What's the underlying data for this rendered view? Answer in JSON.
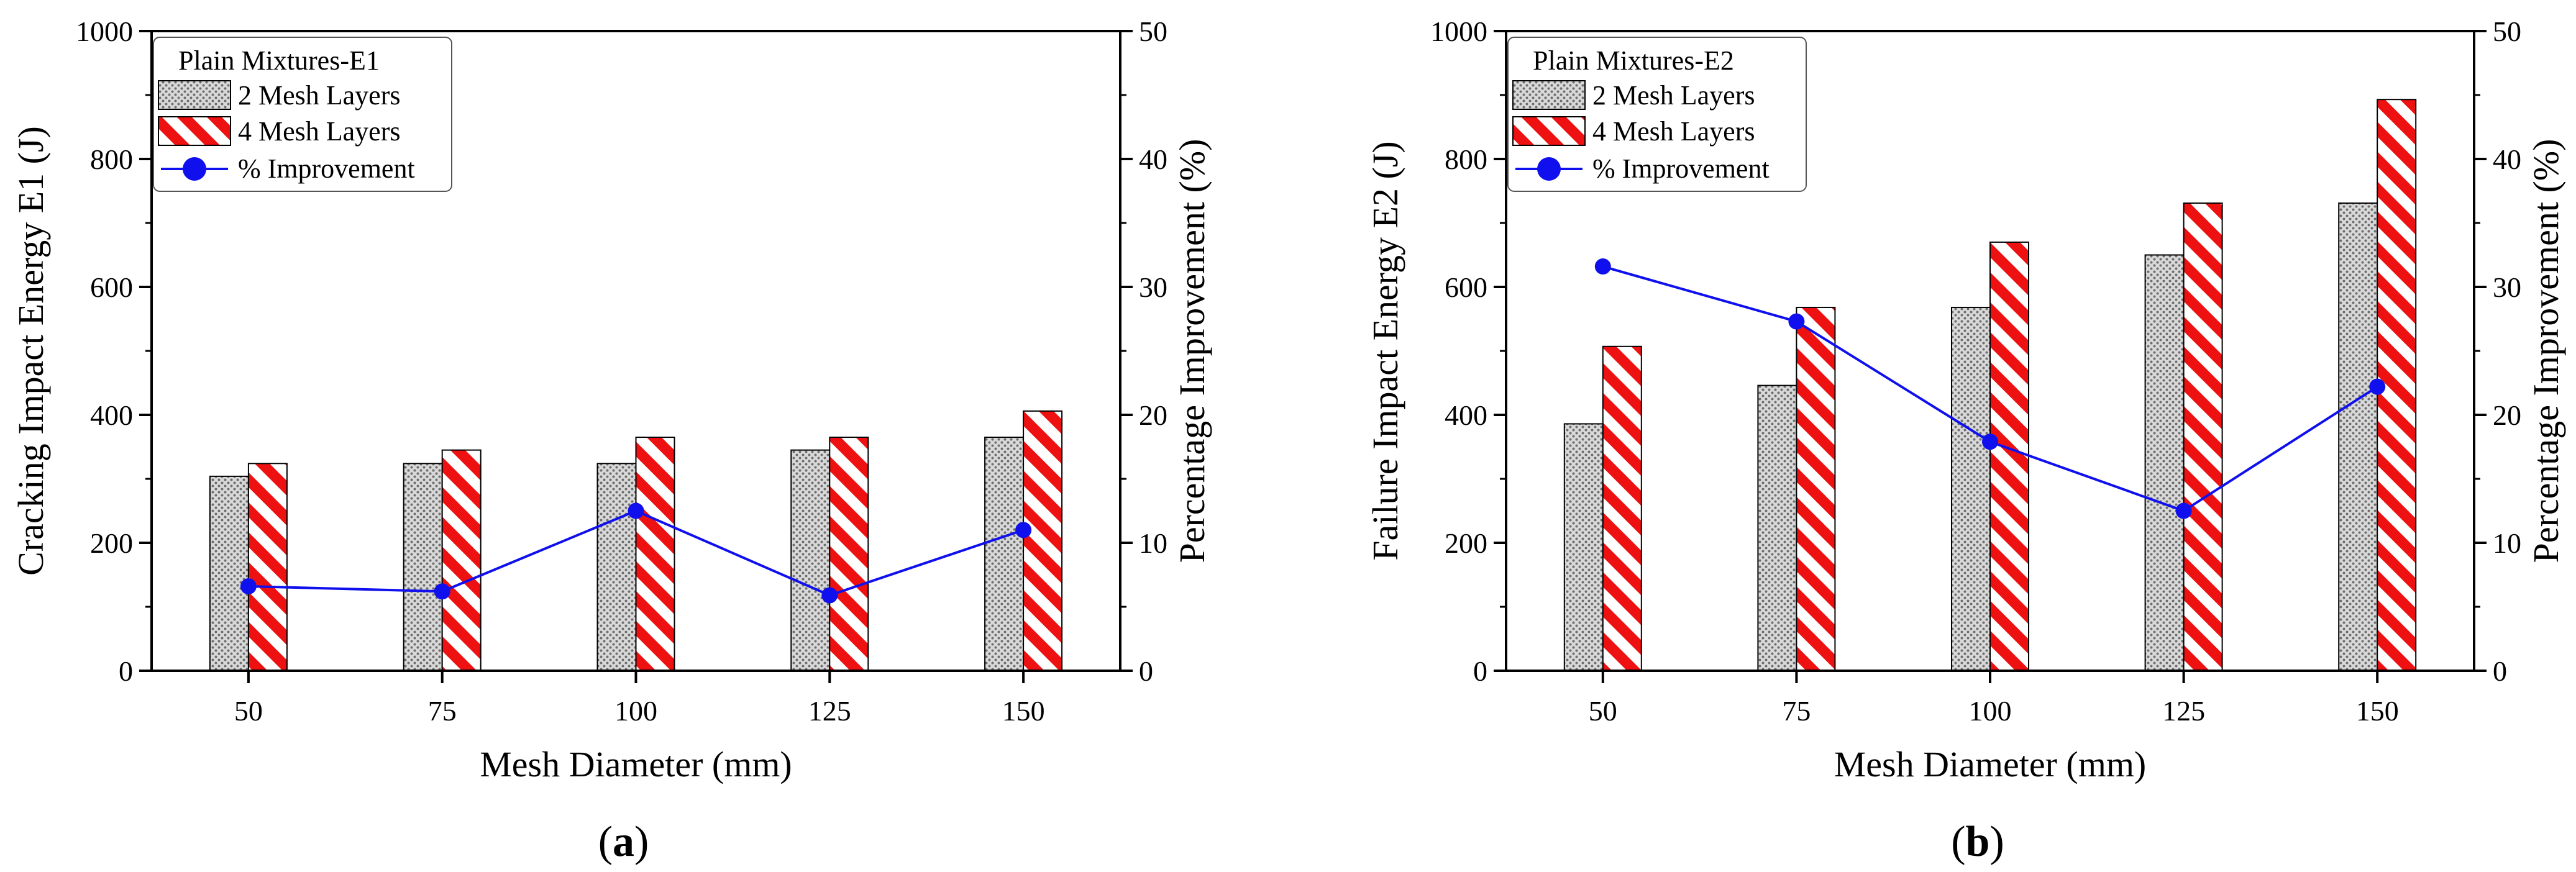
{
  "colors": {
    "two_layers_fill": "#d9d9d9",
    "four_layers_stripe": "#ee1111",
    "improvement_line": "#1010ee",
    "axis": "#000000"
  },
  "chart_data": [
    {
      "type": "bar",
      "panel_label_open": "(",
      "panel_label_letter": "a",
      "panel_label_close": ")",
      "legend_title": "Plain Mixtures-E1",
      "xlabel": "Mesh Diameter (mm)",
      "ylabel": "Cracking Impact Energy E1 (J)",
      "ylabel_right": "Percentage Improvement (%)",
      "categories": [
        "50",
        "75",
        "100",
        "125",
        "150"
      ],
      "ylim": [
        0,
        1000
      ],
      "yticks": [
        "0",
        "200",
        "400",
        "600",
        "800",
        "1000"
      ],
      "ylim_right": [
        0,
        50
      ],
      "yticks_right": [
        "0",
        "10",
        "20",
        "30",
        "40",
        "50"
      ],
      "series": [
        {
          "name": "2 Mesh Layers",
          "kind": "bar",
          "values": [
            304,
            324,
            324,
            345,
            365
          ]
        },
        {
          "name": "4 Mesh Layers",
          "kind": "bar",
          "values": [
            324,
            345,
            365,
            365,
            406
          ]
        },
        {
          "name": "% Improvement",
          "kind": "line",
          "axis": "right",
          "values": [
            6.6,
            6.2,
            12.5,
            5.9,
            11.0
          ]
        }
      ]
    },
    {
      "type": "bar",
      "panel_label_open": "(",
      "panel_label_letter": "b",
      "panel_label_close": ")",
      "legend_title": "Plain Mixtures-E2",
      "xlabel": "Mesh Diameter (mm)",
      "ylabel": "Failure Impact Energy E2 (J)",
      "ylabel_right": "Percentage Improvement (%)",
      "categories": [
        "50",
        "75",
        "100",
        "125",
        "150"
      ],
      "ylim": [
        0,
        1000
      ],
      "yticks": [
        "0",
        "200",
        "400",
        "600",
        "800",
        "1000"
      ],
      "ylim_right": [
        0,
        50
      ],
      "yticks_right": [
        "0",
        "10",
        "20",
        "30",
        "40",
        "50"
      ],
      "series": [
        {
          "name": "2 Mesh Layers",
          "kind": "bar",
          "values": [
            386,
            446,
            568,
            650,
            731
          ]
        },
        {
          "name": "4 Mesh Layers",
          "kind": "bar",
          "values": [
            507,
            568,
            670,
            731,
            893
          ]
        },
        {
          "name": "% Improvement",
          "kind": "line",
          "axis": "right",
          "values": [
            31.6,
            27.3,
            17.9,
            12.5,
            22.2
          ]
        }
      ]
    }
  ]
}
